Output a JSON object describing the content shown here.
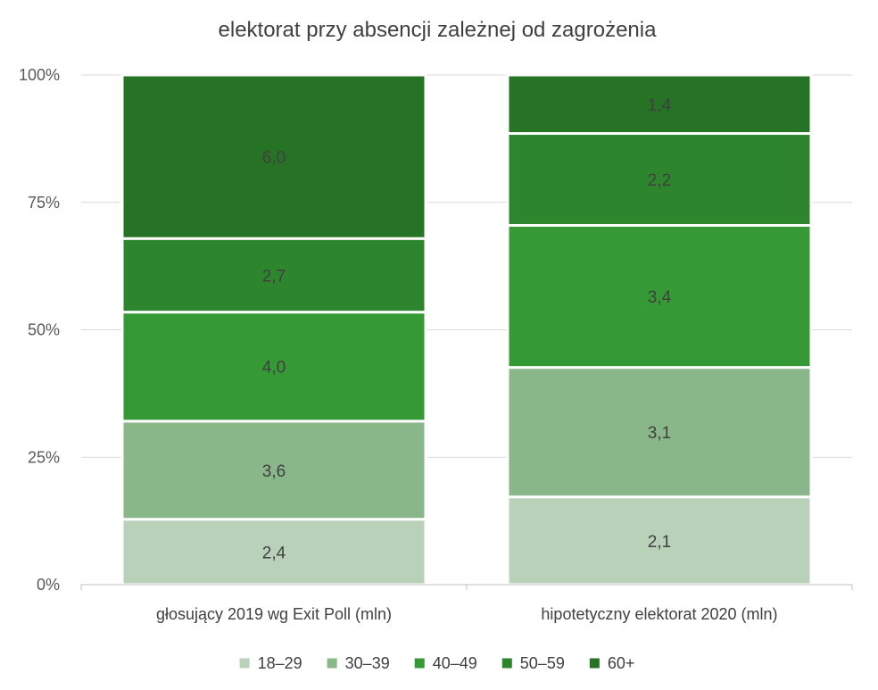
{
  "chart_data": {
    "type": "bar",
    "stacked": "percent",
    "title": "elektorat przy absencji zależnej od zagrożenia",
    "categories": [
      "głosujący 2019 wg Exit Poll  (mln)",
      "hipotetyczny elektorat 2020  (mln)"
    ],
    "series": [
      {
        "name": "18–29",
        "values": [
          2.4,
          2.1
        ],
        "labels": [
          "2,4",
          "2,1"
        ],
        "color": "#b8d1b8"
      },
      {
        "name": "30–39",
        "values": [
          3.6,
          3.1
        ],
        "labels": [
          "3,6",
          "3,1"
        ],
        "color": "#8ab78a"
      },
      {
        "name": "40–49",
        "values": [
          4.0,
          3.4
        ],
        "labels": [
          "4,0",
          "3,4"
        ],
        "color": "#359935"
      },
      {
        "name": "50–59",
        "values": [
          2.7,
          2.2
        ],
        "labels": [
          "2,7",
          "2,2"
        ],
        "color": "#2d862d"
      },
      {
        "name": "60+",
        "values": [
          6.0,
          1.4
        ],
        "labels": [
          "6,0",
          "1,4"
        ],
        "color": "#267326"
      }
    ],
    "y_ticks": [
      "0%",
      "25%",
      "50%",
      "75%",
      "100%"
    ],
    "ylim": [
      0,
      100
    ],
    "grid": true,
    "legend": "bottom"
  }
}
